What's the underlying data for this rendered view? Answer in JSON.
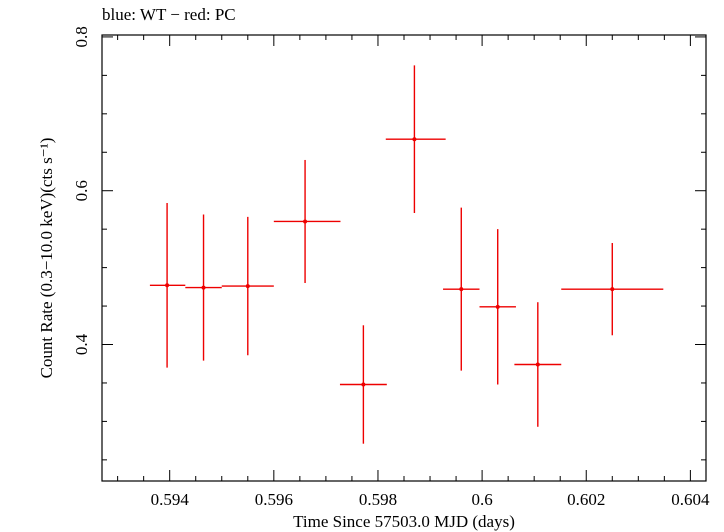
{
  "chart_data": {
    "type": "scatter",
    "title": "blue: WT − red: PC",
    "xlabel": "Time Since 57503.0 MJD (days)",
    "ylabel": "Count Rate (0.3−10.0 keV)(cts s⁻¹)",
    "xlim": [
      0.5927,
      0.6043
    ],
    "ylim": [
      0.2225,
      0.8025
    ],
    "x_ticks": [
      0.594,
      0.596,
      0.598,
      0.6,
      0.602,
      0.604
    ],
    "x_tick_labels": [
      "0.594",
      "0.596",
      "0.598",
      "0.6",
      "0.602",
      "0.604"
    ],
    "y_ticks": [
      0.4,
      0.6,
      0.8
    ],
    "y_tick_labels": [
      "0.4",
      "0.6",
      "0.8"
    ],
    "grid": false,
    "series": [
      {
        "name": "PC",
        "color": "#ee0000",
        "points": [
          {
            "x": 0.59395,
            "xerr_lo": 0.00033,
            "xerr_hi": 0.00035,
            "y": 0.477,
            "yerr": 0.107
          },
          {
            "x": 0.59465,
            "xerr_lo": 0.00035,
            "xerr_hi": 0.00035,
            "y": 0.474,
            "yerr": 0.095
          },
          {
            "x": 0.5955,
            "xerr_lo": 0.0005,
            "xerr_hi": 0.0005,
            "y": 0.476,
            "yerr": 0.09
          },
          {
            "x": 0.5966,
            "xerr_lo": 0.0006,
            "xerr_hi": 0.00068,
            "y": 0.56,
            "yerr": 0.08
          },
          {
            "x": 0.59772,
            "xerr_lo": 0.00045,
            "xerr_hi": 0.00045,
            "y": 0.348,
            "yerr": 0.077
          },
          {
            "x": 0.5987,
            "xerr_lo": 0.00055,
            "xerr_hi": 0.0006,
            "y": 0.667,
            "yerr": 0.096
          },
          {
            "x": 0.5996,
            "xerr_lo": 0.00035,
            "xerr_hi": 0.00035,
            "y": 0.472,
            "yerr": 0.106
          },
          {
            "x": 0.6003,
            "xerr_lo": 0.00035,
            "xerr_hi": 0.00035,
            "y": 0.449,
            "yerr": 0.101
          },
          {
            "x": 0.60107,
            "xerr_lo": 0.00045,
            "xerr_hi": 0.00045,
            "y": 0.374,
            "yerr": 0.081
          },
          {
            "x": 0.6025,
            "xerr_lo": 0.00098,
            "xerr_hi": 0.00098,
            "y": 0.472,
            "yerr": 0.06
          }
        ]
      }
    ]
  }
}
